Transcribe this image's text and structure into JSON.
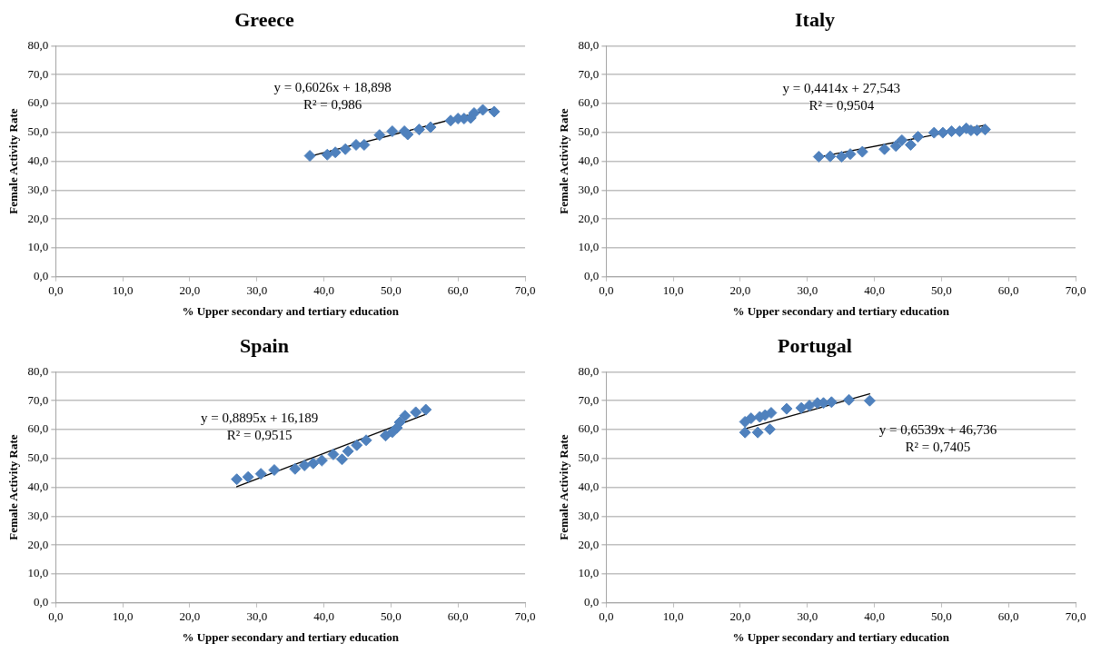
{
  "chart_data": [
    {
      "type": "scatter",
      "title": "Greece",
      "xlabel": "% Upper secondary and tertiary education",
      "ylabel": "Female Activity Rate",
      "xlim": [
        0,
        70
      ],
      "xticks": [
        {
          "value": 0,
          "label": "0,0"
        },
        {
          "value": 10,
          "label": "10,0"
        },
        {
          "value": 20,
          "label": "20,0"
        },
        {
          "value": 30,
          "label": "30,0"
        },
        {
          "value": 40,
          "label": "40,0"
        },
        {
          "value": 50,
          "label": "50,0"
        },
        {
          "value": 60,
          "label": "60,0"
        },
        {
          "value": 70,
          "label": "70,0"
        }
      ],
      "ylim": [
        0,
        80
      ],
      "yticks": [
        {
          "value": 0,
          "label": "0,0"
        },
        {
          "value": 10,
          "label": "10,0"
        },
        {
          "value": 20,
          "label": "20,0"
        },
        {
          "value": 30,
          "label": "30,0"
        },
        {
          "value": 40,
          "label": "40,0"
        },
        {
          "value": 50,
          "label": "50,0"
        },
        {
          "value": 60,
          "label": "60,0"
        },
        {
          "value": 70,
          "label": "70,0"
        },
        {
          "value": 80,
          "label": "80,0"
        }
      ],
      "grid": "y",
      "legend": false,
      "series": [
        {
          "color": "#4f81bd",
          "marker": "diamond",
          "x": [
            37.9,
            40.5,
            41.7,
            43.2,
            44.8,
            46.0,
            48.3,
            50.2,
            52.0,
            52.5,
            54.2,
            55.9,
            58.9,
            60.0,
            60.9,
            61.9,
            62.4,
            63.7,
            65.4
          ],
          "values": [
            41.9,
            42.3,
            43.1,
            44.2,
            45.7,
            45.7,
            49.1,
            50.4,
            50.4,
            49.3,
            51.0,
            51.8,
            54.1,
            54.8,
            54.8,
            55.0,
            56.7,
            57.8,
            57.2
          ]
        },
        {
          "type": "line",
          "color": "#000000",
          "marker": "none",
          "x": [
            37.9,
            65.4
          ],
          "values": [
            41.7,
            58.3
          ]
        }
      ],
      "annotations": [
        "y = 0,6026x + 18,898",
        "R² = 0,986"
      ]
    },
    {
      "type": "scatter",
      "title": "Italy",
      "xlabel": "% Upper secondary and tertiary education",
      "ylabel": "Female Activity Rate",
      "xlim": [
        0,
        70
      ],
      "xticks": [
        {
          "value": 0,
          "label": "0,0"
        },
        {
          "value": 10,
          "label": "10,0"
        },
        {
          "value": 20,
          "label": "20,0"
        },
        {
          "value": 30,
          "label": "30,0"
        },
        {
          "value": 40,
          "label": "40,0"
        },
        {
          "value": 50,
          "label": "50,0"
        },
        {
          "value": 60,
          "label": "60,0"
        },
        {
          "value": 70,
          "label": "70,0"
        }
      ],
      "ylim": [
        0,
        80
      ],
      "yticks": [
        {
          "value": 0,
          "label": "0,0"
        },
        {
          "value": 10,
          "label": "10,0"
        },
        {
          "value": 20,
          "label": "20,0"
        },
        {
          "value": 30,
          "label": "30,0"
        },
        {
          "value": 40,
          "label": "40,0"
        },
        {
          "value": 50,
          "label": "50,0"
        },
        {
          "value": 60,
          "label": "60,0"
        },
        {
          "value": 70,
          "label": "70,0"
        },
        {
          "value": 80,
          "label": "80,0"
        }
      ],
      "grid": "y",
      "legend": false,
      "series": [
        {
          "color": "#4f81bd",
          "marker": "diamond",
          "x": [
            31.7,
            33.4,
            35.1,
            36.4,
            38.2,
            41.5,
            43.2,
            44.1,
            45.4,
            46.5,
            48.9,
            50.2,
            51.5,
            52.7,
            53.7,
            54.4,
            55.3,
            56.5
          ],
          "values": [
            41.6,
            41.7,
            41.6,
            42.5,
            43.3,
            44.2,
            45.3,
            47.3,
            45.7,
            48.5,
            49.9,
            49.9,
            50.4,
            50.4,
            51.4,
            50.7,
            50.7,
            51.0
          ]
        },
        {
          "type": "line",
          "color": "#000000",
          "marker": "none",
          "x": [
            31.7,
            56.5
          ],
          "values": [
            41.5,
            52.5
          ]
        }
      ],
      "annotations": [
        "y = 0,4414x + 27,543",
        "R² = 0,9504"
      ]
    },
    {
      "type": "scatter",
      "title": "Spain",
      "xlabel": "% Upper secondary and tertiary education",
      "ylabel": "Female Activity Rate",
      "xlim": [
        0,
        70
      ],
      "xticks": [
        {
          "value": 0,
          "label": "0,0"
        },
        {
          "value": 10,
          "label": "10,0"
        },
        {
          "value": 20,
          "label": "20,0"
        },
        {
          "value": 30,
          "label": "30,0"
        },
        {
          "value": 40,
          "label": "40,0"
        },
        {
          "value": 50,
          "label": "50,0"
        },
        {
          "value": 60,
          "label": "60,0"
        },
        {
          "value": 70,
          "label": "70,0"
        }
      ],
      "ylim": [
        0,
        80
      ],
      "yticks": [
        {
          "value": 0,
          "label": "0,0"
        },
        {
          "value": 10,
          "label": "10,0"
        },
        {
          "value": 20,
          "label": "20,0"
        },
        {
          "value": 30,
          "label": "30,0"
        },
        {
          "value": 40,
          "label": "40,0"
        },
        {
          "value": 50,
          "label": "50,0"
        },
        {
          "value": 60,
          "label": "60,0"
        },
        {
          "value": 70,
          "label": "70,0"
        },
        {
          "value": 80,
          "label": "80,0"
        }
      ],
      "grid": "y",
      "legend": false,
      "series": [
        {
          "color": "#4f81bd",
          "marker": "diamond",
          "x": [
            27.0,
            28.7,
            30.6,
            32.6,
            35.7,
            37.1,
            38.4,
            39.7,
            41.4,
            42.7,
            43.6,
            44.9,
            46.3,
            49.2,
            50.2,
            50.9,
            51.3,
            52.1,
            53.7,
            55.2
          ],
          "values": [
            42.8,
            43.6,
            44.7,
            46.0,
            46.4,
            47.6,
            48.3,
            49.3,
            51.4,
            49.7,
            52.5,
            54.6,
            56.3,
            57.9,
            59.1,
            60.6,
            62.5,
            64.8,
            66.0,
            66.9
          ]
        },
        {
          "type": "line",
          "color": "#000000",
          "marker": "none",
          "x": [
            27.0,
            55.2
          ],
          "values": [
            40.2,
            65.3
          ]
        }
      ],
      "annotations": [
        "y = 0,8895x + 16,189",
        "R² = 0,9515"
      ]
    },
    {
      "type": "scatter",
      "title": "Portugal",
      "xlabel": "% Upper secondary and tertiary education",
      "ylabel": "Female Activity Rate",
      "xlim": [
        0,
        70
      ],
      "xticks": [
        {
          "value": 0,
          "label": "0,0"
        },
        {
          "value": 10,
          "label": "10,0"
        },
        {
          "value": 20,
          "label": "20,0"
        },
        {
          "value": 30,
          "label": "30,0"
        },
        {
          "value": 40,
          "label": "40,0"
        },
        {
          "value": 50,
          "label": "50,0"
        },
        {
          "value": 60,
          "label": "60,0"
        },
        {
          "value": 70,
          "label": "70,0"
        }
      ],
      "ylim": [
        0,
        80
      ],
      "yticks": [
        {
          "value": 0,
          "label": "0,0"
        },
        {
          "value": 10,
          "label": "10,0"
        },
        {
          "value": 20,
          "label": "20,0"
        },
        {
          "value": 30,
          "label": "30,0"
        },
        {
          "value": 40,
          "label": "40,0"
        },
        {
          "value": 50,
          "label": "50,0"
        },
        {
          "value": 60,
          "label": "60,0"
        },
        {
          "value": 70,
          "label": "70,0"
        },
        {
          "value": 80,
          "label": "80,0"
        }
      ],
      "grid": "y",
      "legend": false,
      "series": [
        {
          "color": "#4f81bd",
          "marker": "diamond",
          "x": [
            20.7,
            20.7,
            21.6,
            22.6,
            22.9,
            23.7,
            24.4,
            24.6,
            26.9,
            29.1,
            30.3,
            31.5,
            32.4,
            33.6,
            36.2,
            39.3
          ],
          "values": [
            62.7,
            59.0,
            63.9,
            59.0,
            64.4,
            65.0,
            60.1,
            65.8,
            67.2,
            67.5,
            68.3,
            69.2,
            69.2,
            69.5,
            70.3,
            70.0
          ]
        },
        {
          "type": "line",
          "color": "#000000",
          "marker": "none",
          "x": [
            20.7,
            39.3
          ],
          "values": [
            60.3,
            72.4
          ]
        }
      ],
      "annotations": [
        "y = 0,6539x + 46,736",
        "R² = 0,7405"
      ]
    }
  ]
}
